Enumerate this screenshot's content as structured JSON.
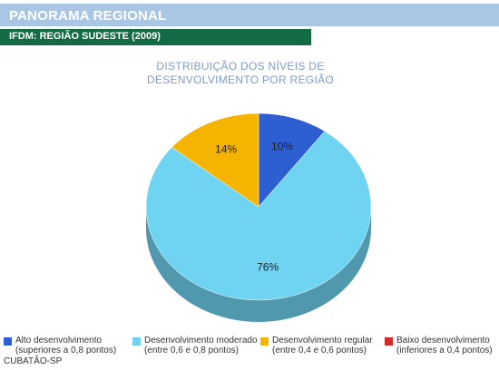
{
  "header": {
    "title": "PANORAMA REGIONAL"
  },
  "subheader": {
    "title": "IFDM: REGIÃO SUDESTE (2009)"
  },
  "chart_data": {
    "type": "pie",
    "title_line1": "DISTRIBUIÇÃO DOS NÍVEIS DE",
    "title_line2": "DESENVOLVIMENTO POR REGIÃO",
    "slices": [
      {
        "name": "Alto desenvolvimento",
        "range": "(superiores a 0,8 pontos)",
        "value": 10,
        "label": "10%",
        "color": "#2d5fd0"
      },
      {
        "name": "Desenvolvimento moderado",
        "range": "(entre 0,6 e 0,8 pontos)",
        "value": 76,
        "label": "76%",
        "color": "#6fd3f2"
      },
      {
        "name": "Desenvolvimento regular",
        "range": "(entre 0,4 e 0,6 pontos)",
        "value": 14,
        "label": "14%",
        "color": "#f5b400"
      },
      {
        "name": "Baixo desenvolvimento",
        "range": "(inferiores a 0,4 pontos)",
        "value": 0,
        "label": "",
        "color": "#d62828"
      }
    ]
  },
  "footnote": "CUBATÃO-SP"
}
